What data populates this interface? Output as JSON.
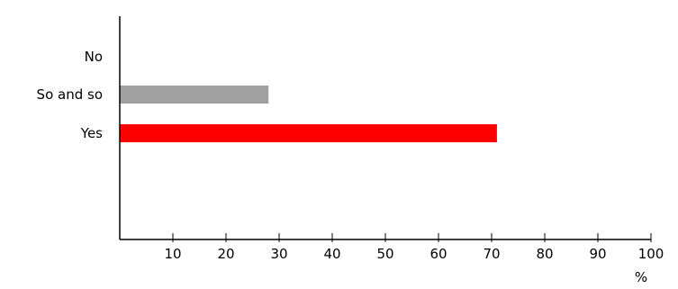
{
  "chart_data": {
    "type": "bar",
    "orientation": "horizontal",
    "categories": [
      "No",
      "So and so",
      "Yes"
    ],
    "values": [
      0,
      28,
      71
    ],
    "colors": [
      "#a0a0a0",
      "#a0a0a0",
      "#ff0000"
    ],
    "xlim": [
      0,
      100
    ],
    "xticks": [
      "10",
      "20",
      "30",
      "40",
      "50",
      "60",
      "70",
      "80",
      "90",
      "100"
    ],
    "xlabel": "%",
    "title": "",
    "grid": false,
    "legend": "none"
  }
}
